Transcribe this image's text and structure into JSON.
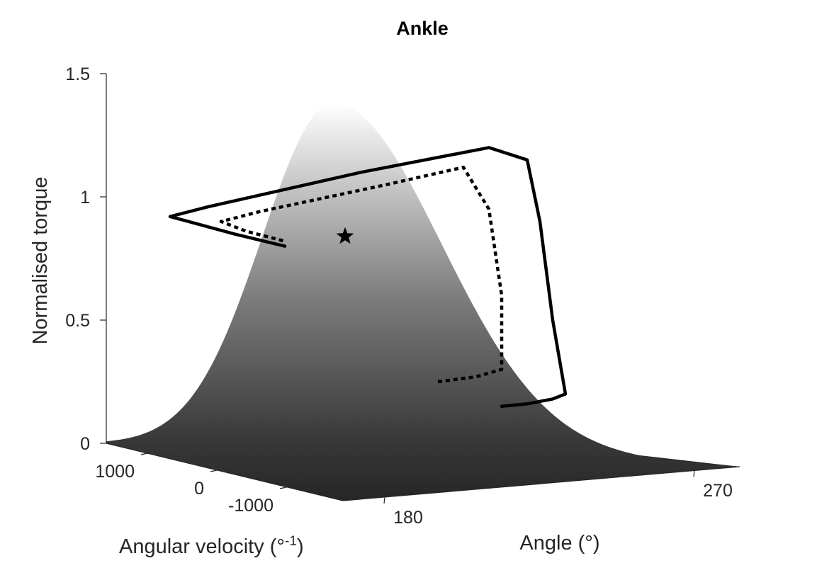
{
  "chart_data": {
    "type": "surface",
    "title": "Ankle",
    "zlabel": "Normalised torque",
    "xlabel": "Angle (°)",
    "ylabel_main": "Angular velocity (°",
    "ylabel_sup": "-1",
    "ylabel_close": ")",
    "z_ticks": [
      {
        "value": 0,
        "label": "0"
      },
      {
        "value": 0.5,
        "label": "0.5"
      },
      {
        "value": 1,
        "label": "1"
      },
      {
        "value": 1.5,
        "label": "1.5"
      }
    ],
    "x_ticks": [
      {
        "value": 180,
        "label": "180"
      },
      {
        "value": 270,
        "label": "270"
      }
    ],
    "y_ticks": [
      {
        "value": 1000,
        "label": "1000"
      },
      {
        "value": 0,
        "label": "0"
      },
      {
        "value": -1000,
        "label": "-1000"
      }
    ],
    "zlim": [
      0,
      1.5
    ],
    "surface": {
      "peak_torque": 1.38,
      "colormap": [
        "#2a2a2a",
        "#ffffff"
      ]
    },
    "series": [
      {
        "style": "solid",
        "points": [
          [
            0.31,
            0.15
          ],
          [
            0.33,
            0.16
          ],
          [
            0.35,
            0.18
          ],
          [
            0.36,
            0.2
          ],
          [
            0.35,
            0.5
          ],
          [
            0.34,
            0.9
          ],
          [
            0.33,
            1.15
          ],
          [
            0.3,
            1.2
          ],
          [
            0.2,
            1.1
          ],
          [
            0.08,
            0.96
          ],
          [
            0.05,
            0.92
          ],
          [
            0.1,
            0.85
          ],
          [
            0.14,
            0.8
          ]
        ]
      },
      {
        "style": "dotted",
        "points": [
          [
            0.26,
            0.25
          ],
          [
            0.29,
            0.27
          ],
          [
            0.31,
            0.3
          ],
          [
            0.31,
            0.6
          ],
          [
            0.3,
            0.95
          ],
          [
            0.28,
            1.12
          ],
          [
            0.22,
            1.05
          ],
          [
            0.12,
            0.94
          ],
          [
            0.09,
            0.9
          ],
          [
            0.11,
            0.86
          ],
          [
            0.14,
            0.82
          ]
        ]
      }
    ],
    "marker": {
      "symbol": "star",
      "torque": 0.84
    },
    "grid": false
  }
}
